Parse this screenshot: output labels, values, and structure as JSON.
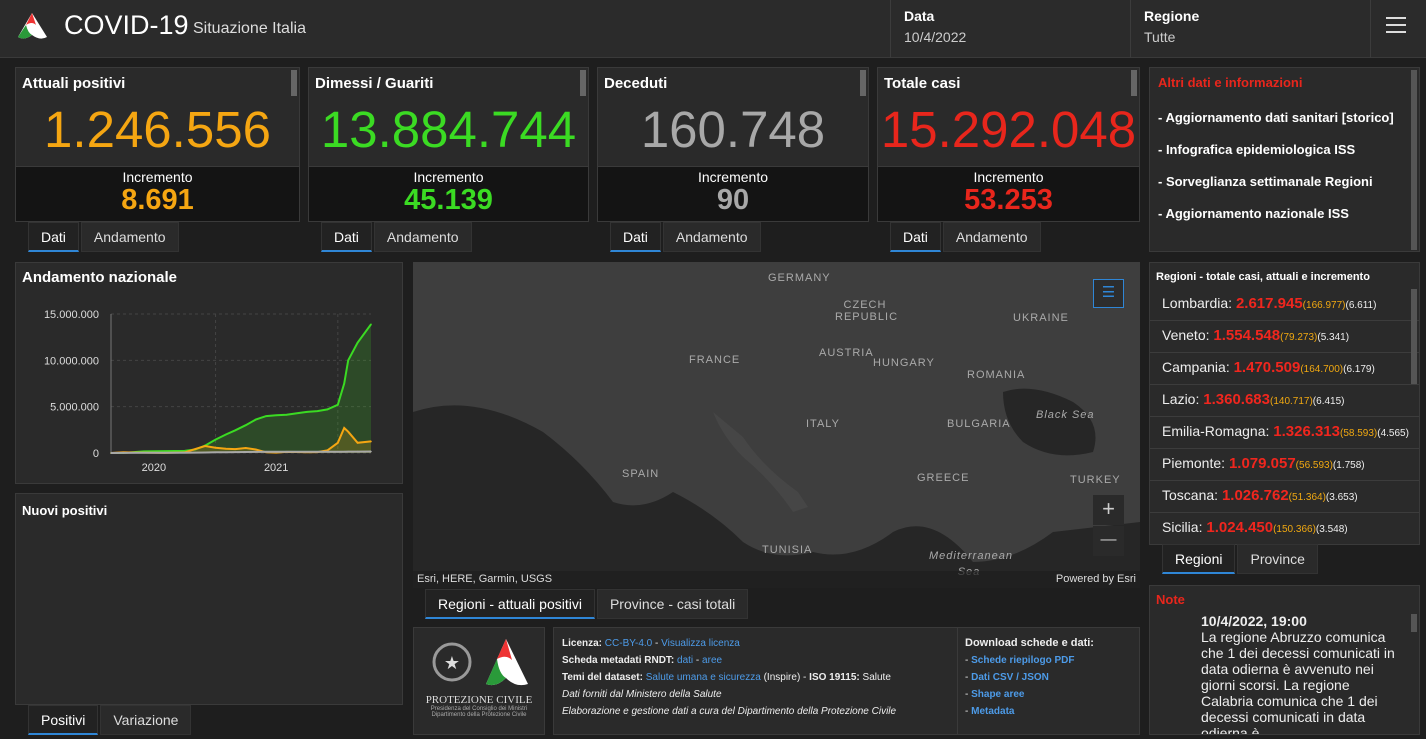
{
  "header": {
    "title": "COVID-19",
    "subtitle": "Situazione Italia",
    "date_label": "Data",
    "date_value": "10/4/2022",
    "region_label": "Regione",
    "region_value": "Tutte",
    "menu_icon": "hamburger-icon"
  },
  "colors": {
    "attuali": "#f5a612",
    "guariti": "#3bdb23",
    "deceduti": "#a8a8a8",
    "totale": "#e8261c",
    "accent": "#2f86d6"
  },
  "cards": [
    {
      "title": "Attuali positivi",
      "value": "1.246.556",
      "inc_label": "Incremento",
      "inc_value": "8.691",
      "color": "#f5a612"
    },
    {
      "title": "Dimessi / Guariti",
      "value": "13.884.744",
      "inc_label": "Incremento",
      "inc_value": "45.139",
      "color": "#3bdb23"
    },
    {
      "title": "Deceduti",
      "value": "160.748",
      "inc_label": "Incremento",
      "inc_value": "90",
      "color": "#a8a8a8"
    },
    {
      "title": "Totale casi",
      "value": "15.292.048",
      "inc_label": "Incremento",
      "inc_value": "53.253",
      "color": "#e8261c"
    }
  ],
  "card_tabs": [
    "Dati",
    "Andamento"
  ],
  "info": {
    "title": "Altri dati e informazioni",
    "links": [
      "- Aggiornamento dati sanitari [storico]",
      "- Infografica epidemiologica ISS",
      "- Sorveglianza settimanale Regioni",
      "- Aggiornamento nazionale ISS"
    ]
  },
  "andamento": {
    "title": "Andamento nazionale"
  },
  "nuovi": {
    "title": "Nuovi positivi",
    "tabs": [
      "Positivi",
      "Variazione"
    ]
  },
  "chart_data": {
    "type": "area",
    "title": "",
    "x_tick_labels": [
      "2020",
      "2021"
    ],
    "y_tick_labels": [
      "0",
      "5.000.000",
      "10.000.000",
      "15.000.000"
    ],
    "ylim": [
      0,
      15000000
    ],
    "xlim": [
      "2020-02-24",
      "2022-04-10"
    ],
    "grid": true,
    "x": [
      "2020-02-24",
      "2020-04-01",
      "2020-06-01",
      "2020-08-01",
      "2020-10-01",
      "2020-11-01",
      "2020-12-01",
      "2021-01-01",
      "2021-02-01",
      "2021-03-01",
      "2021-04-01",
      "2021-05-01",
      "2021-06-01",
      "2021-07-01",
      "2021-08-01",
      "2021-09-01",
      "2021-10-01",
      "2021-11-01",
      "2021-12-01",
      "2022-01-01",
      "2022-01-20",
      "2022-02-01",
      "2022-03-01",
      "2022-04-10"
    ],
    "series": [
      {
        "color": "#3bdb23",
        "values": [
          0,
          15000,
          170000,
          200000,
          230000,
          380000,
          800000,
          1450000,
          2000000,
          2450000,
          3000000,
          3600000,
          3980000,
          4070000,
          4120000,
          4290000,
          4430000,
          4520000,
          4700000,
          5200000,
          7500000,
          10000000,
          11900000,
          13884744
        ]
      },
      {
        "color": "#f5a612",
        "values": [
          0,
          80000,
          40000,
          15000,
          60000,
          420000,
          760000,
          570000,
          450000,
          420000,
          540000,
          380000,
          80000,
          40000,
          120000,
          110000,
          80000,
          100000,
          280000,
          1100000,
          2700000,
          2300000,
          1100000,
          1246556
        ]
      },
      {
        "color": "#a8a8a8",
        "values": [
          0,
          13000,
          33000,
          35000,
          36000,
          39000,
          55000,
          74000,
          88000,
          98000,
          110000,
          121000,
          126000,
          127000,
          128000,
          130000,
          131000,
          133000,
          134000,
          137000,
          143000,
          148000,
          155000,
          160748
        ]
      }
    ]
  },
  "map": {
    "labels": [
      "GERMANY",
      "CZECH REPUBLIC",
      "UKRAINE",
      "FRANCE",
      "AUSTRIA",
      "HUNGARY",
      "ROMANIA",
      "Black Sea",
      "ITALY",
      "BULGARIA",
      "SPAIN",
      "GREECE",
      "TURKEY",
      "TUNISIA",
      "Mediterranean Sea"
    ],
    "attribution": "Esri, HERE, Garmin, USGS",
    "powered": "Powered by Esri",
    "zoom_in": "+",
    "zoom_out": "—",
    "tabs": [
      "Regioni - attuali positivi",
      "Province - casi totali"
    ]
  },
  "footer": {
    "logo_title": "PROTEZIONE CIVILE",
    "logo_sub1": "Presidenza del Consiglio dei Ministri",
    "logo_sub2": "Dipartimento della Protezione Civile",
    "license_label": "Licenza:",
    "license_value": "CC-BY-4.0",
    "license_link": "Visualizza licenza",
    "rndt_label": "Scheda metadati RNDT:",
    "rndt_dati": "dati",
    "rndt_aree": "aree",
    "temi_label": "Temi del dataset:",
    "temi_link": "Salute umana e sicurezza",
    "temi_inspire": "(Inspire) -",
    "iso_label": "ISO 19115:",
    "iso_value": "Salute",
    "line4": "Dati forniti dal Ministero della Salute",
    "line5": "Elaborazione e gestione dati a cura del Dipartimento della Protezione Civile",
    "download_title": "Download schede e dati:",
    "downloads": [
      "Schede riepilogo PDF",
      "Dati CSV / JSON",
      "Shape aree",
      "Metadata"
    ]
  },
  "regions": {
    "title": "Regioni - totale casi, attuali e incremento",
    "tabs": [
      "Regioni",
      "Province"
    ],
    "items": [
      {
        "name": "Lombardia:",
        "total": "2.617.945",
        "attuali": "(166.977)",
        "inc": "(6.611)"
      },
      {
        "name": "Veneto:",
        "total": "1.554.548",
        "attuali": "(79.273)",
        "inc": "(5.341)"
      },
      {
        "name": "Campania:",
        "total": "1.470.509",
        "attuali": "(164.700)",
        "inc": "(6.179)"
      },
      {
        "name": "Lazio:",
        "total": "1.360.683",
        "attuali": "(140.717)",
        "inc": "(6.415)"
      },
      {
        "name": "Emilia-Romagna:",
        "total": "1.326.313",
        "attuali": "(58.593)",
        "inc": "(4.565)"
      },
      {
        "name": "Piemonte:",
        "total": "1.079.057",
        "attuali": "(56.593)",
        "inc": "(1.758)"
      },
      {
        "name": "Toscana:",
        "total": "1.026.762",
        "attuali": "(51.364)",
        "inc": "(3.653)"
      },
      {
        "name": "Sicilia:",
        "total": "1.024.450",
        "attuali": "(150.366)",
        "inc": "(3.548)"
      }
    ]
  },
  "note": {
    "title": "Note",
    "date": "10/4/2022, 19:00",
    "text": "La regione Abruzzo comunica che 1 dei decessi comunicati in data odierna è avvenuto nei giorni scorsi. La regione Calabria comunica che 1 dei decessi comunicati in data odierna è"
  }
}
